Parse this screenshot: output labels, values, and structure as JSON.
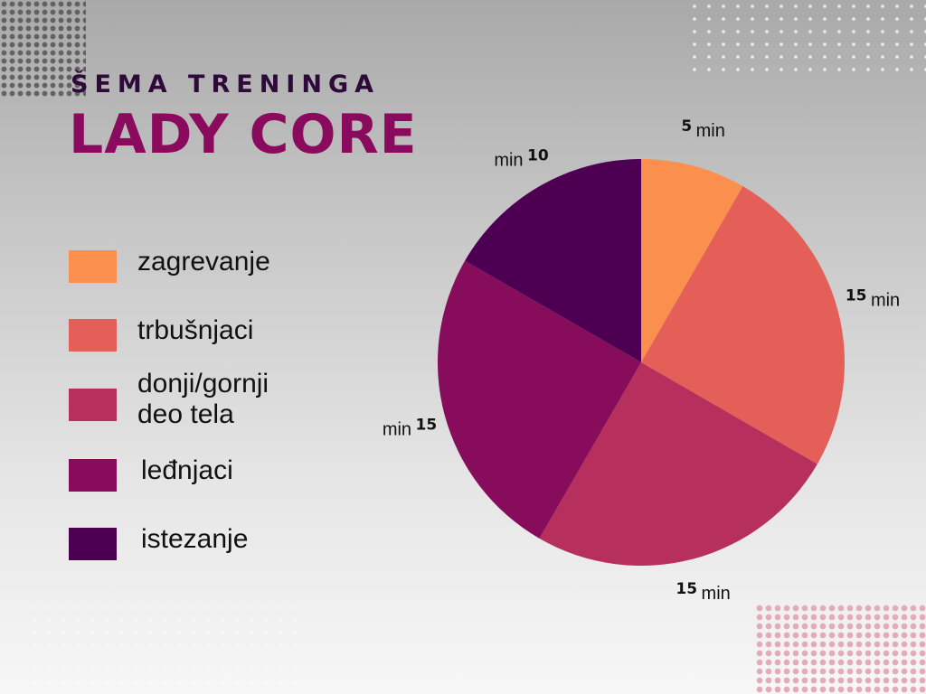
{
  "header": {
    "subtitle": "ŠEMA TRENINGA",
    "title": "LADY CORE"
  },
  "chart_data": {
    "type": "pie",
    "title": "LADY CORE",
    "subtitle": "ŠEMA TRENINGA",
    "categories": [
      "zagrevanje",
      "trbušnjaci",
      "donji/gornji deo tela",
      "leđnjaci",
      "istezanje"
    ],
    "legend_labels": [
      [
        "zagrevanje"
      ],
      [
        "trbušnjaci"
      ],
      [
        "donji/gornji",
        "deo tela"
      ],
      [
        "leđnjaci"
      ],
      [
        "istezanje"
      ]
    ],
    "values": [
      5,
      15,
      15,
      15,
      10
    ],
    "value_text": [
      "5",
      "15",
      "15",
      "15",
      "10"
    ],
    "unit": "min",
    "colors": [
      "#fb8f4d",
      "#e35f58",
      "#b72f5c",
      "#880c5c",
      "#4d0052"
    ],
    "legend_placement": "left",
    "grid": false
  }
}
